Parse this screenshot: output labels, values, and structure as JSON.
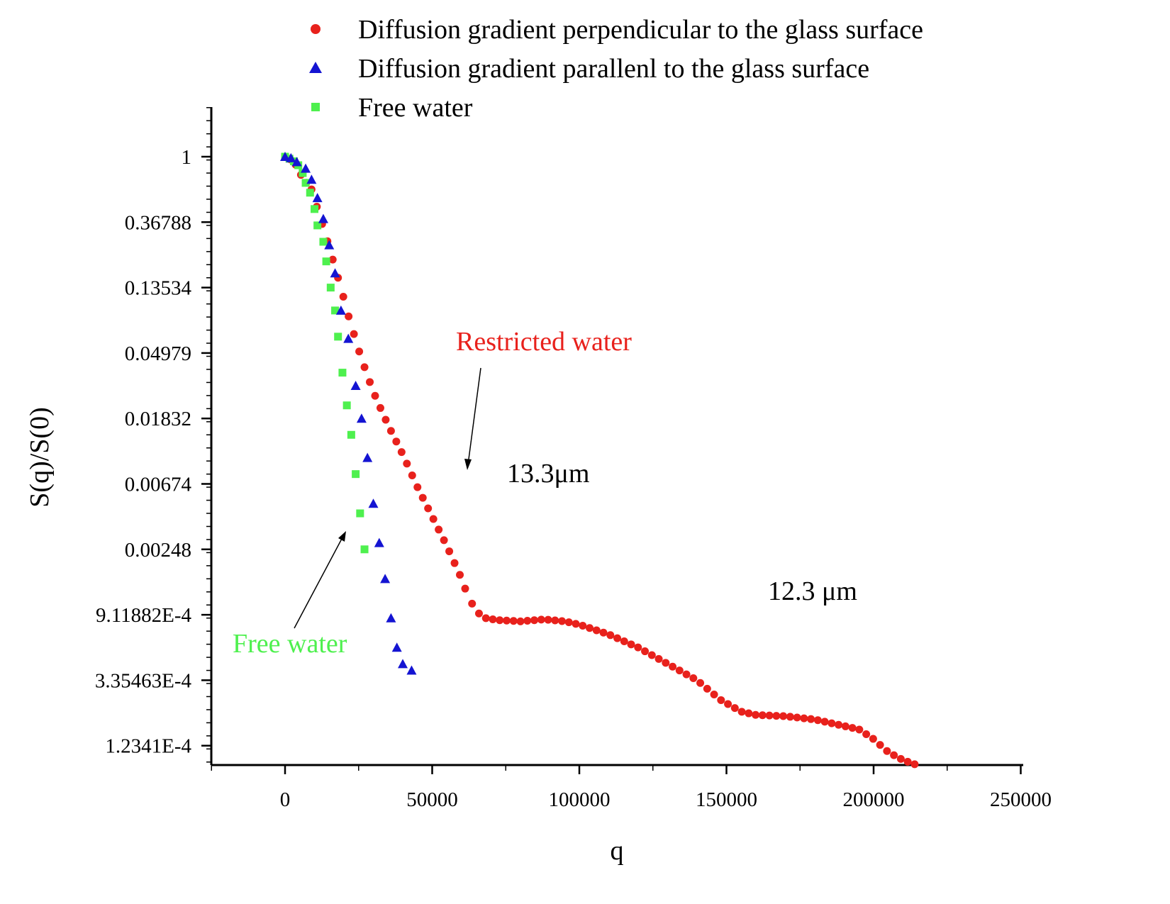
{
  "chart_data": {
    "type": "scatter",
    "title": "",
    "xlabel": "q",
    "ylabel": "S(q)/S(0)",
    "yscale": "ln",
    "xlim": [
      -25000,
      250000
    ],
    "ylim_ln": [
      -9.35,
      0.75
    ],
    "x_ticks": [
      0,
      50000,
      100000,
      150000,
      200000,
      250000
    ],
    "x_tick_labels": [
      "0",
      "50000",
      "100000",
      "150000",
      "200000",
      "250000"
    ],
    "y_ticks_ln": [
      0,
      -1,
      -2,
      -3,
      -4,
      -5,
      -6,
      -7,
      -8,
      -9
    ],
    "y_tick_labels": [
      "1",
      "0.36788",
      "0.13534",
      "0.04979",
      "0.01832",
      "0.00674",
      "0.00248",
      "9.11882E-4",
      "3.35463E-4",
      "1.2341E-4"
    ],
    "grid": false,
    "legend_position": "top",
    "series": [
      {
        "name": "Diffusion gradient perpendicular to the glass surface",
        "marker": "circle",
        "color": "#e8211c",
        "ln_y_knots": [
          [
            0,
            0
          ],
          [
            3000,
            -0.07
          ],
          [
            6000,
            -0.33
          ],
          [
            9000,
            -0.5
          ],
          [
            15000,
            -1.38
          ],
          [
            17000,
            -1.7
          ],
          [
            19000,
            -2.0
          ],
          [
            21000,
            -2.35
          ],
          [
            23000,
            -2.65
          ],
          [
            25000,
            -2.95
          ],
          [
            28000,
            -3.35
          ],
          [
            31000,
            -3.7
          ],
          [
            35000,
            -4.1
          ],
          [
            40000,
            -4.55
          ],
          [
            45000,
            -5.05
          ],
          [
            50000,
            -5.5
          ],
          [
            55000,
            -5.95
          ],
          [
            60000,
            -6.45
          ],
          [
            62000,
            -6.7
          ],
          [
            65000,
            -6.95
          ],
          [
            68000,
            -7.05
          ],
          [
            72000,
            -7.08
          ],
          [
            80000,
            -7.1
          ],
          [
            88000,
            -7.07
          ],
          [
            95000,
            -7.1
          ],
          [
            100000,
            -7.15
          ],
          [
            110000,
            -7.3
          ],
          [
            120000,
            -7.5
          ],
          [
            130000,
            -7.75
          ],
          [
            140000,
            -8.0
          ],
          [
            148000,
            -8.3
          ],
          [
            155000,
            -8.48
          ],
          [
            160000,
            -8.53
          ],
          [
            170000,
            -8.55
          ],
          [
            180000,
            -8.6
          ],
          [
            185000,
            -8.65
          ],
          [
            195000,
            -8.75
          ],
          [
            200000,
            -8.9
          ],
          [
            205000,
            -9.1
          ],
          [
            210000,
            -9.22
          ],
          [
            215000,
            -9.3
          ]
        ],
        "x_range": [
          0,
          215000
        ],
        "x_step_low": 1800,
        "x_step_high": 2350
      },
      {
        "name": "Diffusion gradient parallenl to the glass surface",
        "marker": "triangle",
        "color": "#1414d2",
        "x": [
          0,
          2000,
          4000,
          7000,
          9000,
          11000,
          13000,
          15000,
          17000,
          19000,
          21500,
          24000,
          26000,
          28000,
          30000,
          32000,
          34000,
          36000,
          38000,
          40000,
          43000
        ],
        "ln_y": [
          0,
          -0.02,
          -0.08,
          -0.18,
          -0.35,
          -0.63,
          -0.95,
          -1.35,
          -1.78,
          -2.35,
          -2.78,
          -3.5,
          -4.0,
          -4.6,
          -5.3,
          -5.9,
          -6.45,
          -7.05,
          -7.5,
          -7.75,
          -7.85
        ]
      },
      {
        "name": "Free water",
        "marker": "square",
        "color": "#4ef04e",
        "x": [
          0,
          1500,
          3000,
          4500,
          6000,
          7000,
          8500,
          10000,
          11000,
          13000,
          14000,
          15500,
          17000,
          18000,
          19500,
          21000,
          22500,
          24000,
          25500,
          27000
        ],
        "ln_y": [
          0,
          -0.03,
          -0.07,
          -0.13,
          -0.25,
          -0.4,
          -0.55,
          -0.8,
          -1.05,
          -1.3,
          -1.6,
          -2.0,
          -2.35,
          -2.75,
          -3.3,
          -3.8,
          -4.25,
          -4.85,
          -5.45,
          -6.0
        ]
      }
    ],
    "annotations": [
      {
        "text": "Restricted water",
        "color": "#e8211c"
      },
      {
        "text": "13.3μm",
        "color": "#000000"
      },
      {
        "text": "12.3 μm",
        "color": "#000000"
      },
      {
        "text": "Free water",
        "color": "#4ef04e"
      }
    ]
  }
}
